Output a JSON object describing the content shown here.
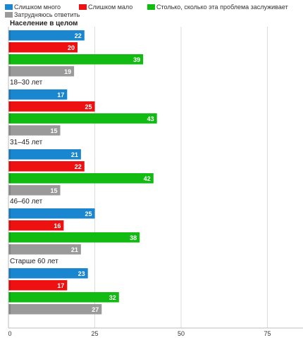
{
  "chart_data": {
    "type": "bar",
    "orientation": "horizontal",
    "categories": [
      "Население в целом",
      "18–30 лет",
      "31–45 лет",
      "46–60 лет",
      "Старше 60 лет"
    ],
    "series": [
      {
        "name": "Слишком много",
        "color": "#1a86d0",
        "values": [
          22,
          17,
          21,
          25,
          23
        ]
      },
      {
        "name": "Слишком мало",
        "color": "#ee1111",
        "values": [
          20,
          25,
          22,
          16,
          17
        ]
      },
      {
        "name": "Столько, сколько эта проблема заслуживает",
        "color": "#11bb11",
        "values": [
          39,
          43,
          42,
          38,
          32
        ]
      },
      {
        "name": "Затрудняюсь ответить",
        "color": "#9a9a9a",
        "values": [
          19,
          15,
          15,
          21,
          27
        ]
      }
    ],
    "xlim": [
      0,
      85
    ],
    "xticks": [
      0,
      25,
      50,
      75
    ],
    "grid": true,
    "legend_position": "top",
    "bold_categories": [
      "Население в целом"
    ]
  }
}
